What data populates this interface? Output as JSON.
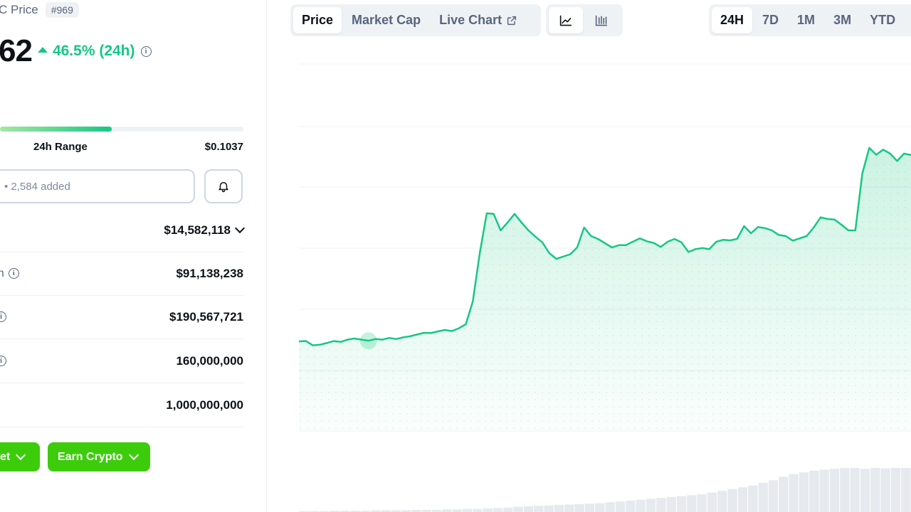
{
  "coin": {
    "name_fragment": "C Price",
    "rank": "#969"
  },
  "price": {
    "value_fragment": "62",
    "change": "46.5% (24h)",
    "change_color": "#16c784"
  },
  "range": {
    "label": "24h Range",
    "high": "$0.1037",
    "position_fraction": 0.46
  },
  "watchlist": {
    "text": "• 2,584 added"
  },
  "stats": [
    {
      "label": "",
      "value": "$14,582,118",
      "has_dropdown": true,
      "has_info": false
    },
    {
      "label": "on",
      "value": "$91,138,238",
      "has_dropdown": false,
      "has_info": true
    },
    {
      "label": "",
      "value": "$190,567,721",
      "has_dropdown": false,
      "has_info": true
    },
    {
      "label": "",
      "value": "160,000,000",
      "has_dropdown": false,
      "has_info": true
    },
    {
      "label": "",
      "value": "1,000,000,000",
      "has_dropdown": false,
      "has_info": false
    }
  ],
  "buttons": {
    "market_fragment": "et",
    "earn_crypto": "Earn Crypto"
  },
  "tabs": {
    "view": [
      "Price",
      "Market Cap",
      "Live Chart"
    ],
    "active_view": "Price",
    "chart_types": [
      "line-chart-icon",
      "candlestick-icon"
    ],
    "active_chart_type": "line-chart-icon",
    "ranges": [
      "24H",
      "7D",
      "1M",
      "3M",
      "YTD"
    ],
    "active_range": "24H"
  },
  "colors": {
    "accent_green": "#16c784",
    "button_green": "#3dcc0c"
  },
  "chart_data": {
    "type": "area",
    "title": "",
    "xlabel": "",
    "ylabel": "",
    "grid": true,
    "series": [
      {
        "values": [
          0.25,
          0.251,
          0.236,
          0.238,
          0.244,
          0.251,
          0.248,
          0.256,
          0.26,
          0.256,
          0.252,
          0.258,
          0.256,
          0.262,
          0.258,
          0.264,
          0.268,
          0.274,
          0.28,
          0.279,
          0.285,
          0.29,
          0.286,
          0.296,
          0.31,
          0.39,
          0.56,
          0.7,
          0.698,
          0.64,
          0.668,
          0.698,
          0.668,
          0.64,
          0.618,
          0.598,
          0.56,
          0.54,
          0.548,
          0.556,
          0.58,
          0.65,
          0.62,
          0.61,
          0.595,
          0.58,
          0.588,
          0.588,
          0.6,
          0.612,
          0.602,
          0.596,
          0.582,
          0.6,
          0.61,
          0.598,
          0.564,
          0.574,
          0.578,
          0.574,
          0.6,
          0.607,
          0.605,
          0.61,
          0.655,
          0.63,
          0.652,
          0.648,
          0.64,
          0.624,
          0.62,
          0.604,
          0.612,
          0.62,
          0.65,
          0.686,
          0.68,
          0.678,
          0.66,
          0.64,
          0.64,
          0.84,
          0.93,
          0.906,
          0.924,
          0.91,
          0.884,
          0.91,
          0.905
        ],
        "color": "#16c784"
      }
    ],
    "volume_values": [
      0.02,
      0.02,
      0.02,
      0.03,
      0.03,
      0.03,
      0.03,
      0.04,
      0.04,
      0.04,
      0.04,
      0.05,
      0.05,
      0.05,
      0.06,
      0.06,
      0.07,
      0.07,
      0.08,
      0.09,
      0.1,
      0.12,
      0.13,
      0.14,
      0.15,
      0.16,
      0.17,
      0.18,
      0.19,
      0.2,
      0.22,
      0.24,
      0.26,
      0.28,
      0.3,
      0.32,
      0.34,
      0.36,
      0.38,
      0.4,
      0.44,
      0.48,
      0.52,
      0.56,
      0.6,
      0.66,
      0.72,
      0.8,
      0.86,
      0.9,
      0.94,
      0.96,
      0.98,
      1.0,
      1.0,
      0.98,
      1.0,
      0.99,
      1.0,
      1.0
    ]
  }
}
